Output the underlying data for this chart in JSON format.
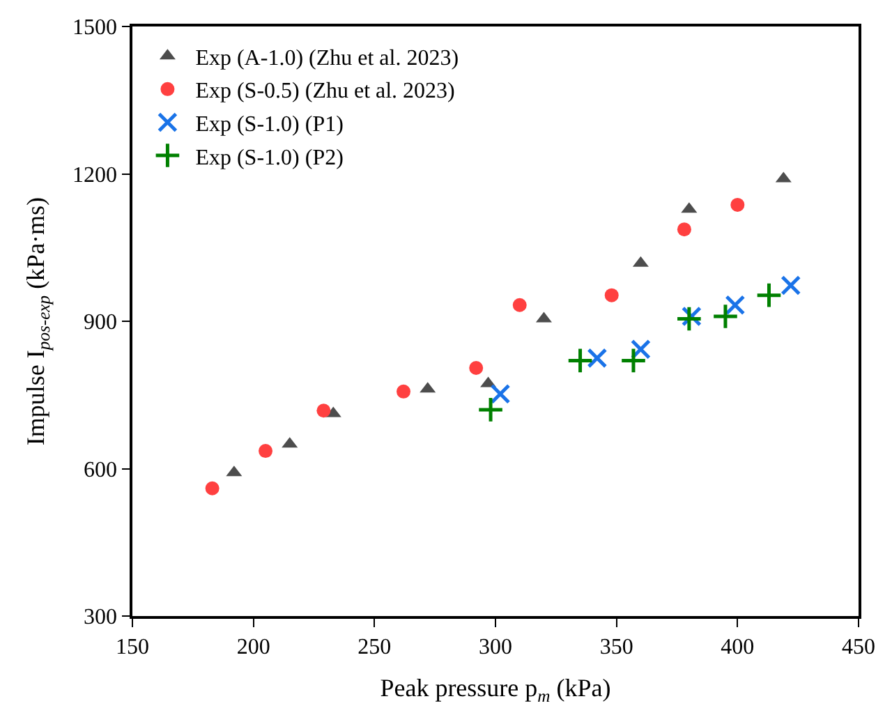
{
  "chart_data": {
    "type": "scatter",
    "xlabel": "Peak pressure p$_{m}$ (kPa)",
    "ylabel": "Impulse I$_{pos-exp}$ (kPa·ms)",
    "xlim": [
      150,
      450
    ],
    "xticks": [
      150,
      200,
      250,
      300,
      350,
      400,
      450
    ],
    "ylim": [
      300,
      1500
    ],
    "yticks": [
      300,
      600,
      900,
      1200,
      1500
    ],
    "legend": "top left",
    "series": [
      {
        "name": "Exp (A-1.0) (Zhu et al. 2023)",
        "color": "#4d4d4d",
        "marker": "triangle",
        "x": [
          192,
          215,
          233,
          272,
          297,
          320,
          360,
          380,
          419
        ],
        "values": [
          592,
          650,
          712,
          762,
          773,
          905,
          1018,
          1128,
          1190
        ]
      },
      {
        "name": "Exp (S-0.5) (Zhu et al. 2023)",
        "color": "#ff4040",
        "marker": "circle",
        "x": [
          183,
          205,
          229,
          262,
          292,
          310,
          348,
          378,
          400
        ],
        "values": [
          560,
          636,
          718,
          757,
          805,
          933,
          953,
          1087,
          1137
        ]
      },
      {
        "name": "Exp (S-1.0) (P1)",
        "color": "#1a73e8",
        "marker": "cross",
        "x": [
          302,
          342,
          360,
          381,
          399,
          422
        ],
        "values": [
          752,
          825,
          843,
          910,
          933,
          973
        ]
      },
      {
        "name": "Exp (S-1.0) (P2)",
        "color": "#008000",
        "marker": "plus",
        "x": [
          298,
          335,
          357,
          380,
          395,
          413
        ],
        "values": [
          720,
          820,
          820,
          905,
          910,
          953
        ]
      }
    ]
  }
}
